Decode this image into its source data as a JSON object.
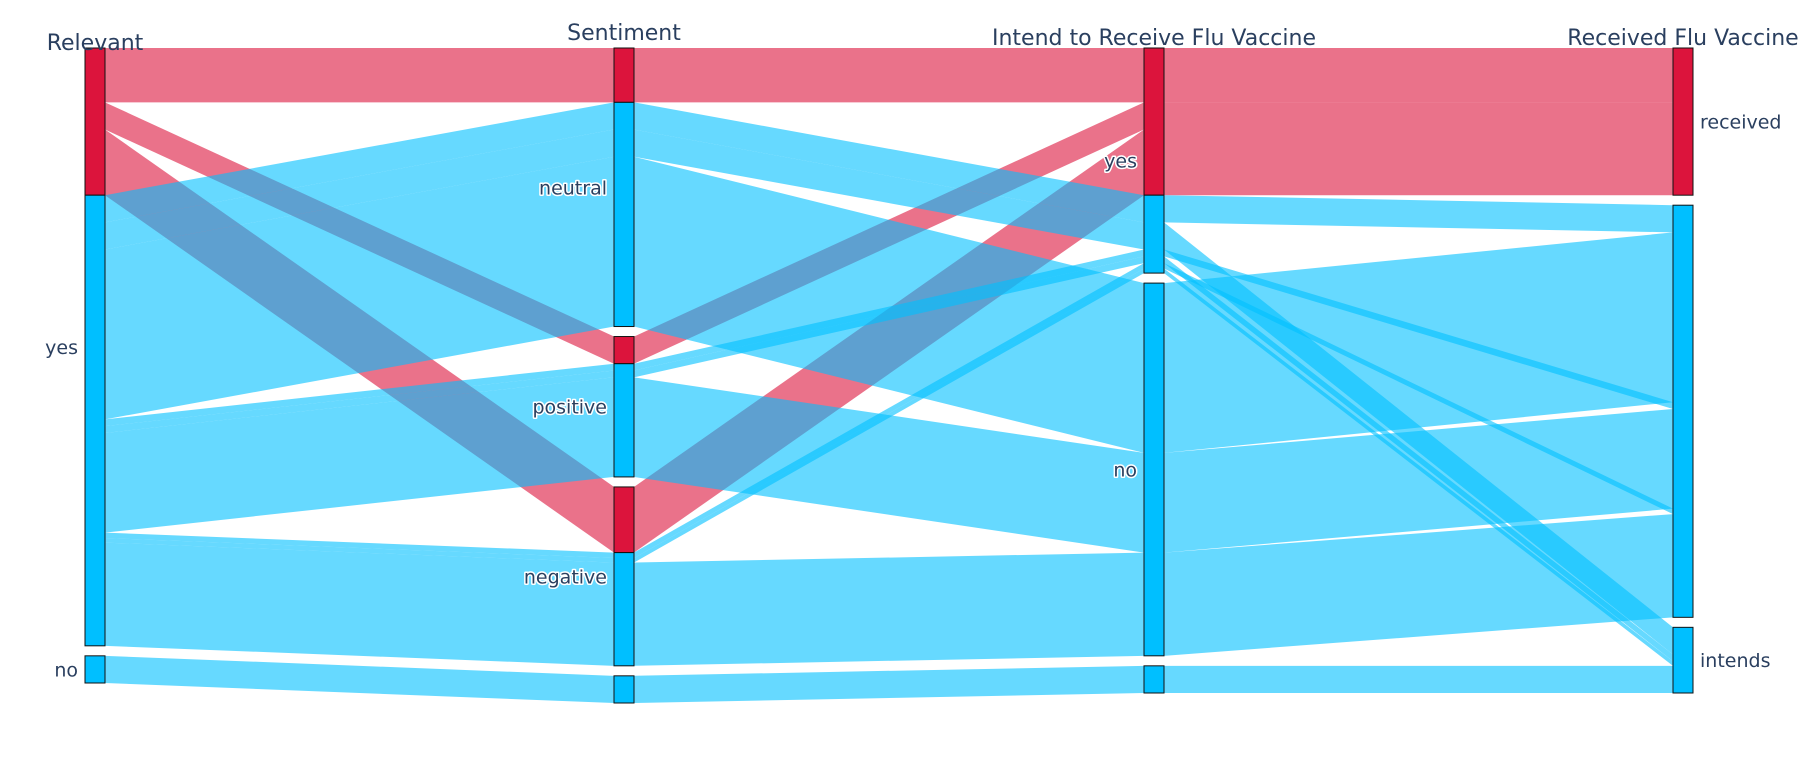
{
  "chart_data": {
    "type": "parallel-categories",
    "colors": {
      "red": "#dc143c",
      "blue": "#00bfff"
    },
    "dimensions": [
      {
        "title": "Relevant",
        "categories": [
          "yes",
          "no"
        ],
        "category_labels": [
          "yes",
          "no"
        ]
      },
      {
        "title": "Sentiment",
        "categories": [
          "neutral",
          "positive",
          "negative",
          ""
        ],
        "category_labels": [
          "neutral",
          "positive",
          "negative",
          ""
        ]
      },
      {
        "title": "Intend to Receive Flu Vaccine",
        "categories": [
          "yes",
          "no",
          ""
        ],
        "category_labels": [
          "yes",
          "no",
          ""
        ]
      },
      {
        "title": "Received Flu Vaccine",
        "categories": [
          "received",
          "",
          "intends"
        ],
        "category_labels": [
          "received",
          "",
          "intends"
        ]
      }
    ],
    "paths": [
      {
        "path": [
          "yes",
          "neutral",
          "yes",
          "received"
        ],
        "color": "red",
        "count": 120
      },
      {
        "path": [
          "yes",
          "positive",
          "yes",
          "received"
        ],
        "color": "red",
        "count": 60
      },
      {
        "path": [
          "yes",
          "negative",
          "yes",
          "received"
        ],
        "color": "red",
        "count": 145
      },
      {
        "path": [
          "yes",
          "neutral",
          "yes",
          ""
        ],
        "color": "blue",
        "count": 60
      },
      {
        "path": [
          "yes",
          "neutral",
          "yes",
          "intends"
        ],
        "color": "blue",
        "count": 60
      },
      {
        "path": [
          "yes",
          "neutral",
          "no",
          ""
        ],
        "color": "blue",
        "count": 375
      },
      {
        "path": [
          "yes",
          "positive",
          "yes",
          ""
        ],
        "color": "blue",
        "count": 15
      },
      {
        "path": [
          "yes",
          "positive",
          "yes",
          "intends"
        ],
        "color": "blue",
        "count": 15
      },
      {
        "path": [
          "yes",
          "positive",
          "no",
          ""
        ],
        "color": "blue",
        "count": 220
      },
      {
        "path": [
          "yes",
          "negative",
          "yes",
          ""
        ],
        "color": "blue",
        "count": 12
      },
      {
        "path": [
          "yes",
          "negative",
          "yes",
          "intends"
        ],
        "color": "blue",
        "count": 10
      },
      {
        "path": [
          "yes",
          "negative",
          "no",
          ""
        ],
        "color": "blue",
        "count": 228
      },
      {
        "path": [
          "no",
          "",
          "",
          "intends"
        ],
        "color": "blue",
        "count": 60
      }
    ]
  }
}
